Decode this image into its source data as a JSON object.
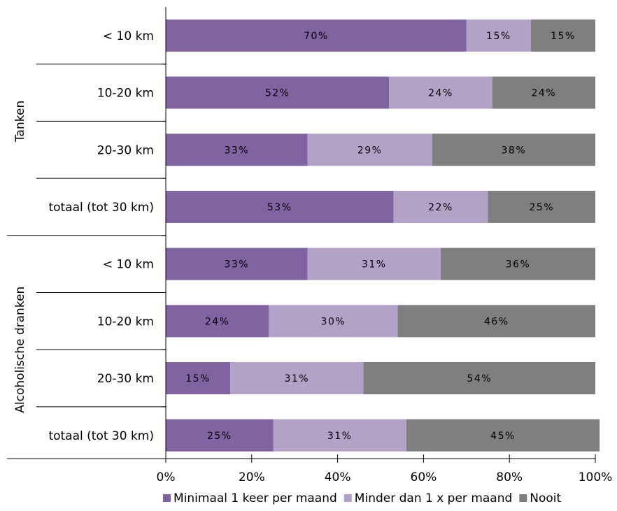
{
  "chart_data": {
    "type": "bar",
    "orientation": "horizontal",
    "stacked": true,
    "title": "",
    "groups": [
      {
        "name": "Tanken",
        "rows": [
          "< 10 km",
          "10-20 km",
          "20-30 km",
          "totaal (tot 30 km)"
        ]
      },
      {
        "name": "Alcoholische dranken",
        "rows": [
          "< 10 km",
          "10-20 km",
          "20-30 km",
          "totaal (tot 30 km)"
        ]
      }
    ],
    "categories": [
      "< 10 km",
      "10-20 km",
      "20-30 km",
      "totaal (tot 30 km)",
      "< 10 km",
      "10-20 km",
      "20-30 km",
      "totaal (tot 30 km)"
    ],
    "series": [
      {
        "name": "Minimaal 1 keer per maand",
        "color": "#8064a2",
        "values": [
          70,
          52,
          33,
          53,
          33,
          24,
          15,
          25
        ]
      },
      {
        "name": "Minder dan 1 x per maand",
        "color": "#b2a2c7",
        "values": [
          15,
          24,
          29,
          22,
          31,
          30,
          31,
          31
        ]
      },
      {
        "name": "Nooit",
        "color": "#7f7f7f",
        "values": [
          15,
          24,
          38,
          25,
          36,
          46,
          54,
          45
        ]
      }
    ],
    "value_labels": [
      [
        "70%",
        "52%",
        "33%",
        "53%",
        "33%",
        "24%",
        "15%",
        "25%"
      ],
      [
        "15%",
        "24%",
        "29%",
        "22%",
        "31%",
        "30%",
        "31%",
        "31%"
      ],
      [
        "15%",
        "24%",
        "38%",
        "25%",
        "36%",
        "46%",
        "54%",
        "45%"
      ]
    ],
    "xlim": [
      0,
      100
    ],
    "xticks": [
      "0%",
      "20%",
      "40%",
      "60%",
      "80%",
      "100%"
    ],
    "legend_position": "bottom",
    "grid": false
  }
}
